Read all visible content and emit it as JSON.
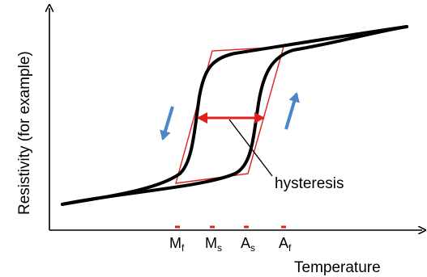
{
  "axes": {
    "y_label": "Resistivity (for example)",
    "x_label": "Temperature"
  },
  "ticks": [
    {
      "base": "M",
      "sub": "f"
    },
    {
      "base": "M",
      "sub": "s"
    },
    {
      "base": "A",
      "sub": "s"
    },
    {
      "base": "A",
      "sub": "f"
    }
  ],
  "annotation": "hysteresis",
  "colors": {
    "curve": "#000000",
    "loop_outline": "#e0201c",
    "width_arrow": "#e0201c",
    "tick_marks": "#e0201c",
    "direction_arrows": "#4a86c8"
  }
}
